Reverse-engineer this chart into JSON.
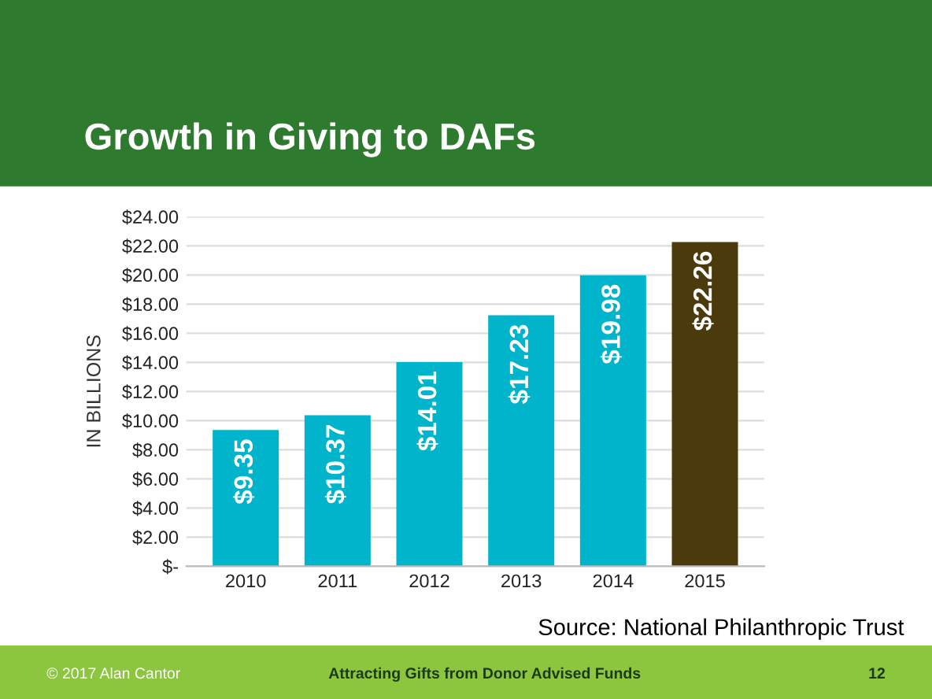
{
  "chart_data": {
    "type": "bar",
    "title": "Growth in Giving to DAFs",
    "ylabel": "IN BILLIONS",
    "categories": [
      "2010",
      "2011",
      "2012",
      "2013",
      "2014",
      "2015"
    ],
    "values": [
      9.35,
      10.37,
      14.01,
      17.23,
      19.98,
      22.26
    ],
    "colors": [
      "#00b4cc",
      "#00b4cc",
      "#00b4cc",
      "#00b4cc",
      "#00b4cc",
      "#4a3a0c"
    ],
    "value_labels": [
      "$9.35",
      "$10.37",
      "$14.01",
      "$17.23",
      "$19.98",
      "$22.26"
    ],
    "ylim": [
      0,
      24
    ],
    "yticks": [
      {
        "value": 0,
        "label": "$-"
      },
      {
        "value": 2,
        "label": "$2.00"
      },
      {
        "value": 4,
        "label": "$4.00"
      },
      {
        "value": 6,
        "label": "$6.00"
      },
      {
        "value": 8,
        "label": "$8.00"
      },
      {
        "value": 10,
        "label": "$10.00"
      },
      {
        "value": 12,
        "label": "$12.00"
      },
      {
        "value": 14,
        "label": "$14.00"
      },
      {
        "value": 16,
        "label": "$16.00"
      },
      {
        "value": 18,
        "label": "$18.00"
      },
      {
        "value": 20,
        "label": "$20.00"
      },
      {
        "value": 22,
        "label": "$22.00"
      },
      {
        "value": 24,
        "label": "$24.00"
      }
    ],
    "grid": "y",
    "annotations": [
      "Source: National Philanthropic Trust",
      "© 2017 Alan Cantor",
      "Attracting Gifts from Donor Advised Funds",
      "12"
    ]
  }
}
